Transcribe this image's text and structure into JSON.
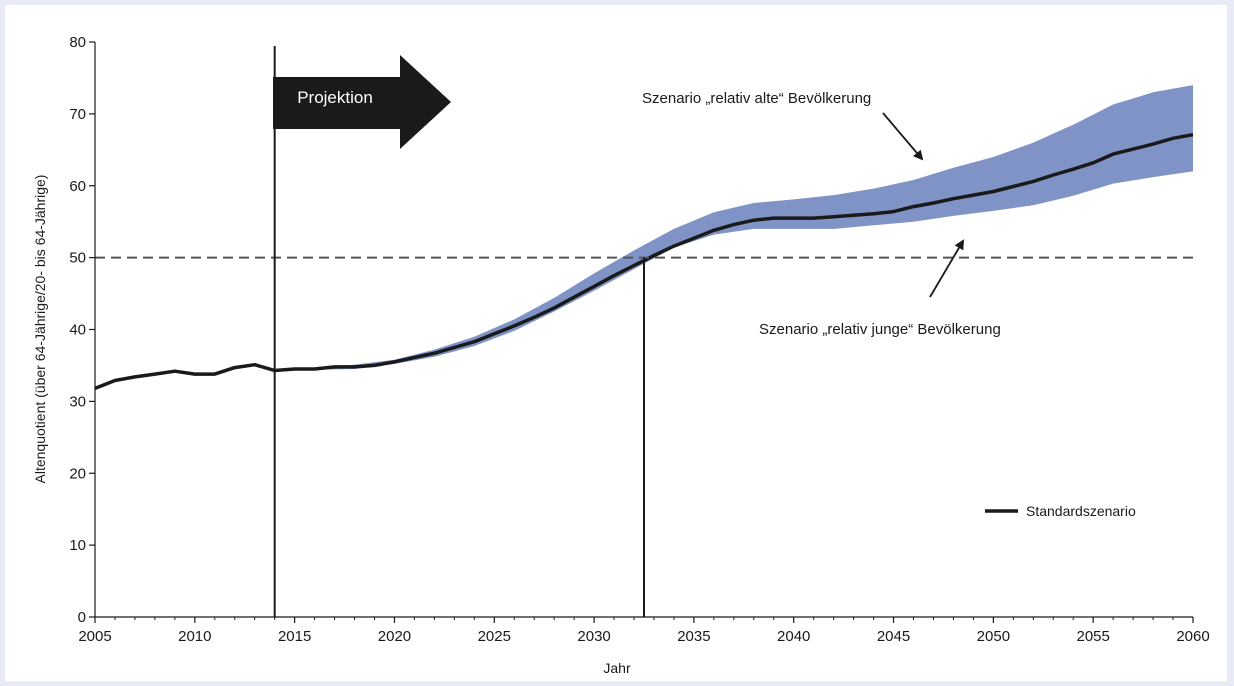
{
  "chart_data": {
    "type": "area",
    "title": "",
    "xlabel": "Jahr",
    "ylabel": "Altenquotient (über 64-Jährige/20- bis 64-Jährige)",
    "xlim": [
      2005,
      2060
    ],
    "ylim": [
      0,
      80
    ],
    "xticks": [
      2005,
      2010,
      2015,
      2020,
      2025,
      2030,
      2035,
      2040,
      2045,
      2050,
      2055,
      2060
    ],
    "yticks": [
      0,
      10,
      20,
      30,
      40,
      50,
      60,
      70,
      80
    ],
    "grid": false,
    "legend_position": "right",
    "series": [
      {
        "name": "Standardszenario",
        "color": "#1a1a1a",
        "x": [
          2005,
          2006,
          2007,
          2008,
          2009,
          2010,
          2011,
          2012,
          2013,
          2014,
          2015,
          2016,
          2017,
          2018,
          2019,
          2020,
          2021,
          2022,
          2023,
          2024,
          2025,
          2026,
          2027,
          2028,
          2029,
          2030,
          2031,
          2032,
          2033,
          2034,
          2035,
          2036,
          2037,
          2038,
          2039,
          2040,
          2041,
          2042,
          2043,
          2044,
          2045,
          2046,
          2047,
          2048,
          2049,
          2050,
          2051,
          2052,
          2053,
          2054,
          2055,
          2056,
          2057,
          2058,
          2059,
          2060
        ],
        "y": [
          31.8,
          32.9,
          33.4,
          33.8,
          34.2,
          33.8,
          33.8,
          34.7,
          35.1,
          34.3,
          34.5,
          34.5,
          34.8,
          34.8,
          35.0,
          35.5,
          36.1,
          36.7,
          37.5,
          38.3,
          39.4,
          40.5,
          41.7,
          43.0,
          44.5,
          46.0,
          47.5,
          48.9,
          50.3,
          51.6,
          52.7,
          53.8,
          54.6,
          55.2,
          55.5,
          55.5,
          55.5,
          55.7,
          55.9,
          56.1,
          56.4,
          57.1,
          57.6,
          58.2,
          58.7,
          59.2,
          59.9,
          60.6,
          61.5,
          62.3,
          63.2,
          64.4,
          65.1,
          65.8,
          66.6,
          67.1
        ]
      }
    ],
    "band": {
      "color": "#7f93c6",
      "x": [
        2014,
        2016,
        2018,
        2020,
        2022,
        2024,
        2026,
        2028,
        2030,
        2032,
        2034,
        2036,
        2038,
        2040,
        2042,
        2044,
        2046,
        2048,
        2050,
        2052,
        2054,
        2056,
        2058,
        2060
      ],
      "upper": [
        34.4,
        34.7,
        35.1,
        35.8,
        37.2,
        39.0,
        41.4,
        44.4,
        47.8,
        51.0,
        54.0,
        56.3,
        57.6,
        58.1,
        58.7,
        59.6,
        60.8,
        62.5,
        64.0,
        66.0,
        68.5,
        71.3,
        73.0,
        74.0
      ],
      "lower": [
        34.2,
        34.4,
        34.5,
        35.2,
        36.2,
        37.7,
        39.8,
        42.5,
        45.4,
        48.4,
        51.4,
        53.2,
        54.0,
        54.0,
        54.0,
        54.5,
        55.0,
        55.8,
        56.5,
        57.3,
        58.6,
        60.3,
        61.2,
        62.0
      ]
    },
    "reference_line": {
      "y": 50,
      "style": "dashed"
    },
    "marker_lines": [
      2014,
      2032.5
    ],
    "annotations": {
      "projection_label": "Projektion",
      "old_scenario": "Szenario „relativ alte“ Bevölkerung",
      "young_scenario": "Szenario „relativ junge“ Bevölkerung"
    }
  }
}
